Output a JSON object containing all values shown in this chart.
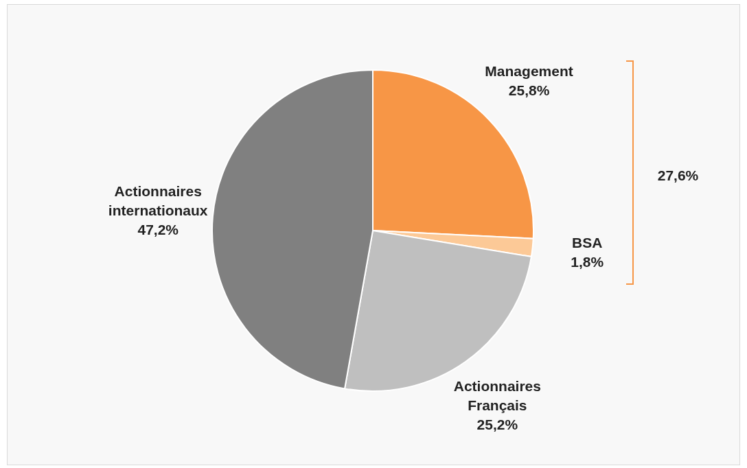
{
  "chart_data": {
    "type": "pie",
    "categories": [
      "Management",
      "BSA",
      "Actionnaires Français",
      "Actionnaires internationaux"
    ],
    "values": [
      25.8,
      1.8,
      25.2,
      47.2
    ],
    "colors": [
      "#f79646",
      "#fcc997",
      "#bfbfbf",
      "#808080"
    ],
    "value_labels": [
      "25,8%",
      "1,8%",
      "25,2%",
      "47,2%"
    ],
    "annotations": [
      "27,6%"
    ],
    "legend": false
  }
}
